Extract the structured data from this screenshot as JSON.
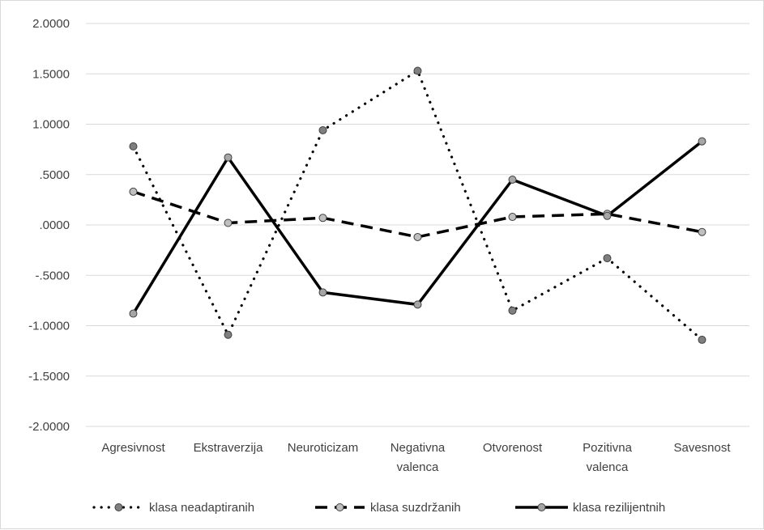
{
  "chart_data": {
    "type": "line",
    "categories": [
      [
        "Agresivnost"
      ],
      [
        "Ekstraverzija"
      ],
      [
        "Neuroticizam"
      ],
      [
        "Negativna",
        "valenca"
      ],
      [
        "Otvorenost"
      ],
      [
        "Pozitivna",
        "valenca"
      ],
      [
        "Savesnost"
      ]
    ],
    "ylim": [
      -2.0,
      2.0
    ],
    "yticks": [
      "2.0000",
      "1.5000",
      "1.0000",
      ".5000",
      ".0000",
      "-.5000",
      "-1.0000",
      "-1.5000",
      "-2.0000"
    ],
    "ytick_values": [
      2.0,
      1.5,
      1.0,
      0.5,
      0.0,
      -0.5,
      -1.0,
      -1.5,
      -2.0
    ],
    "grid": true,
    "legend_position": "bottom",
    "series": [
      {
        "name": "klasa neadaptiranih",
        "values": [
          0.78,
          -1.09,
          0.94,
          1.53,
          -0.85,
          -0.33,
          -1.14
        ],
        "line_style": "dotted",
        "marker_color": "#7f7f7f"
      },
      {
        "name": "klasa suzdržanih",
        "values": [
          0.33,
          0.02,
          0.07,
          -0.12,
          0.08,
          0.11,
          -0.07
        ],
        "line_style": "dashed",
        "marker_color": "#bfbfbf"
      },
      {
        "name": "klasa rezilijentnih",
        "values": [
          -0.88,
          0.67,
          -0.67,
          -0.79,
          0.45,
          0.09,
          0.83
        ],
        "line_style": "solid",
        "marker_color": "#a6a6a6"
      }
    ]
  }
}
